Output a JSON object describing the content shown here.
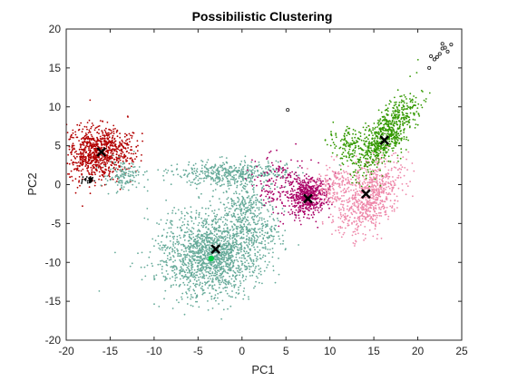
{
  "chart_data": {
    "type": "scatter",
    "title": "Possibilistic Clustering",
    "xlabel": "PC1",
    "ylabel": "PC2",
    "xlim": [
      -20,
      25
    ],
    "ylim": [
      -20,
      20
    ],
    "x_ticks": [
      -20,
      -15,
      -10,
      -5,
      0,
      5,
      10,
      15,
      20,
      25
    ],
    "x_tick_labels": [
      "-20",
      "-15",
      "-10",
      "-5",
      "0",
      "5",
      "10",
      "15",
      "20",
      "25"
    ],
    "y_ticks": [
      -20,
      -15,
      -10,
      -5,
      0,
      5,
      10,
      15,
      20
    ],
    "y_tick_labels": [
      "-20",
      "-15",
      "-10",
      "-5",
      "0",
      "5",
      "10",
      "15",
      "20"
    ],
    "grid": false,
    "legend": "none",
    "clusters": [
      {
        "color": "#b30000",
        "center": [
          -16,
          4.2
        ],
        "point_count": 900
      },
      {
        "color": "#66aa99",
        "center": [
          -3,
          -8.3
        ],
        "point_count": 2600
      },
      {
        "color": "#aa0066",
        "center": [
          7.5,
          -1.8
        ],
        "point_count": 700
      },
      {
        "color": "#ee88aa",
        "center": [
          14.1,
          -1.2
        ],
        "point_count": 900
      },
      {
        "color": "#339900",
        "center": [
          16.2,
          5.7
        ],
        "point_count": 850
      },
      {
        "color": "#000000",
        "center": [
          -17.5,
          0.5
        ],
        "point_count": 40
      }
    ],
    "centroid_markers": [
      {
        "x": -16,
        "y": 4.2
      },
      {
        "x": -3,
        "y": -8.3
      },
      {
        "x": 7.5,
        "y": -1.8
      },
      {
        "x": 14.1,
        "y": -1.2
      },
      {
        "x": 16.2,
        "y": 5.7
      }
    ],
    "outlier_points": [
      {
        "x": 21.5,
        "y": 16.5
      },
      {
        "x": 21.9,
        "y": 16.1
      },
      {
        "x": 22.2,
        "y": 16.4
      },
      {
        "x": 22.5,
        "y": 16.8
      },
      {
        "x": 22.8,
        "y": 17.5
      },
      {
        "x": 23.1,
        "y": 17.6
      },
      {
        "x": 23.4,
        "y": 17.1
      },
      {
        "x": 22.8,
        "y": 18.1
      },
      {
        "x": 23.8,
        "y": 18.0
      },
      {
        "x": 21.3,
        "y": 15.0
      },
      {
        "x": 5.2,
        "y": 9.6
      }
    ],
    "highlight_point": {
      "x": -3.5,
      "y": -9.5,
      "color": "#00cc44"
    }
  }
}
